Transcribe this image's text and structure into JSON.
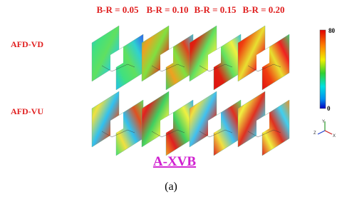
{
  "figure": {
    "column_headers": [
      "B-R = 0.05",
      "B-R = 0.10",
      "B-R = 0.15",
      "B-R = 0.20"
    ],
    "row_labels": [
      "AFD-VD",
      "AFD-VU"
    ],
    "colorbar": {
      "max_label": "80",
      "min_label": "0"
    },
    "axes_triad": {
      "z": "Z",
      "y": "Y",
      "x": "X"
    },
    "title": "A-XVB",
    "caption": "(a)"
  }
}
